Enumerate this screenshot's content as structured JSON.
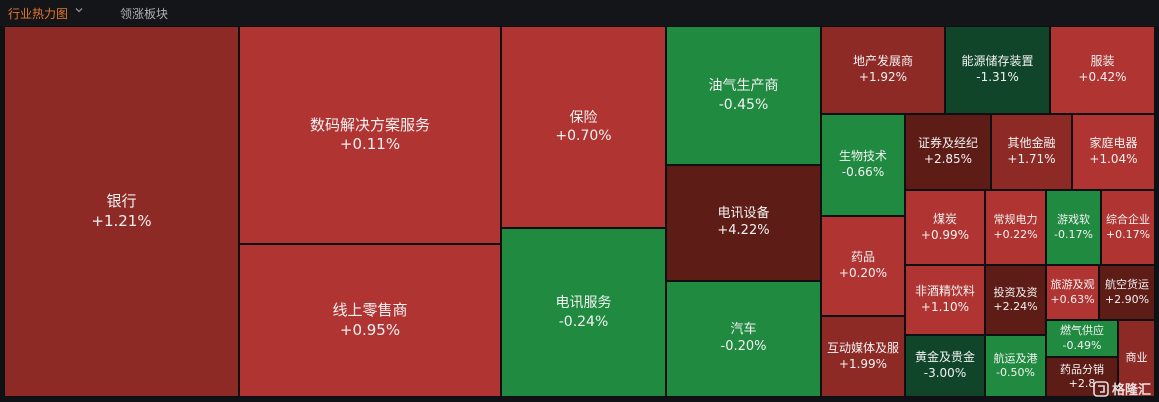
{
  "header": {
    "tab_active": "行业热力图",
    "tab_other": "领涨板块"
  },
  "watermark": "格隆汇",
  "colors": {
    "up_strong": "#5e1c17",
    "up_mid": "#8e2a26",
    "up_light": "#b03431",
    "down_light": "#1f8a40",
    "down_strong": "#10452a"
  },
  "chart_data": {
    "type": "heatmap",
    "title": "",
    "cells": [
      {
        "name": "银行",
        "change": "+1.21%",
        "value": 1.21
      },
      {
        "name": "数码解决方案服务",
        "change": "+0.11%",
        "value": 0.11
      },
      {
        "name": "线上零售商",
        "change": "+0.95%",
        "value": 0.95
      },
      {
        "name": "保险",
        "change": "+0.70%",
        "value": 0.7
      },
      {
        "name": "电讯服务",
        "change": "-0.24%",
        "value": -0.24
      },
      {
        "name": "油气生产商",
        "change": "-0.45%",
        "value": -0.45
      },
      {
        "name": "电讯设备",
        "change": "+4.22%",
        "value": 4.22
      },
      {
        "name": "汽车",
        "change": "-0.20%",
        "value": -0.2
      },
      {
        "name": "地产发展商",
        "change": "+1.92%",
        "value": 1.92
      },
      {
        "name": "能源储存装置",
        "change": "-1.31%",
        "value": -1.31
      },
      {
        "name": "服装",
        "change": "+0.42%",
        "value": 0.42
      },
      {
        "name": "生物技术",
        "change": "-0.66%",
        "value": -0.66
      },
      {
        "name": "证券及经纪",
        "change": "+2.85%",
        "value": 2.85
      },
      {
        "name": "其他金融",
        "change": "+1.71%",
        "value": 1.71
      },
      {
        "name": "家庭电器",
        "change": "+1.04%",
        "value": 1.04
      },
      {
        "name": "药品",
        "change": "+0.20%",
        "value": 0.2
      },
      {
        "name": "煤炭",
        "change": "+0.99%",
        "value": 0.99
      },
      {
        "name": "常规电力",
        "change": "+0.22%",
        "value": 0.22
      },
      {
        "name": "游戏软",
        "change": "-0.17%",
        "value": -0.17
      },
      {
        "name": "综合企业",
        "change": "+0.17%",
        "value": 0.17
      },
      {
        "name": "非酒精饮料",
        "change": "+1.10%",
        "value": 1.1
      },
      {
        "name": "投资及资",
        "change": "+2.24%",
        "value": 2.24
      },
      {
        "name": "旅游及观",
        "change": "+0.63%",
        "value": 0.63
      },
      {
        "name": "航空货运",
        "change": "+2.90%",
        "value": 2.9
      },
      {
        "name": "互动媒体及服",
        "change": "+1.99%",
        "value": 1.99
      },
      {
        "name": "黄金及贵金",
        "change": "-3.00%",
        "value": -3.0
      },
      {
        "name": "航运及港",
        "change": "-0.50%",
        "value": -0.5
      },
      {
        "name": "燃气供应",
        "change": "-0.49%",
        "value": -0.49
      },
      {
        "name": "药品分销",
        "change": "+2.8",
        "value": 2.8
      },
      {
        "name": "商业",
        "change": "",
        "value": null
      }
    ]
  }
}
